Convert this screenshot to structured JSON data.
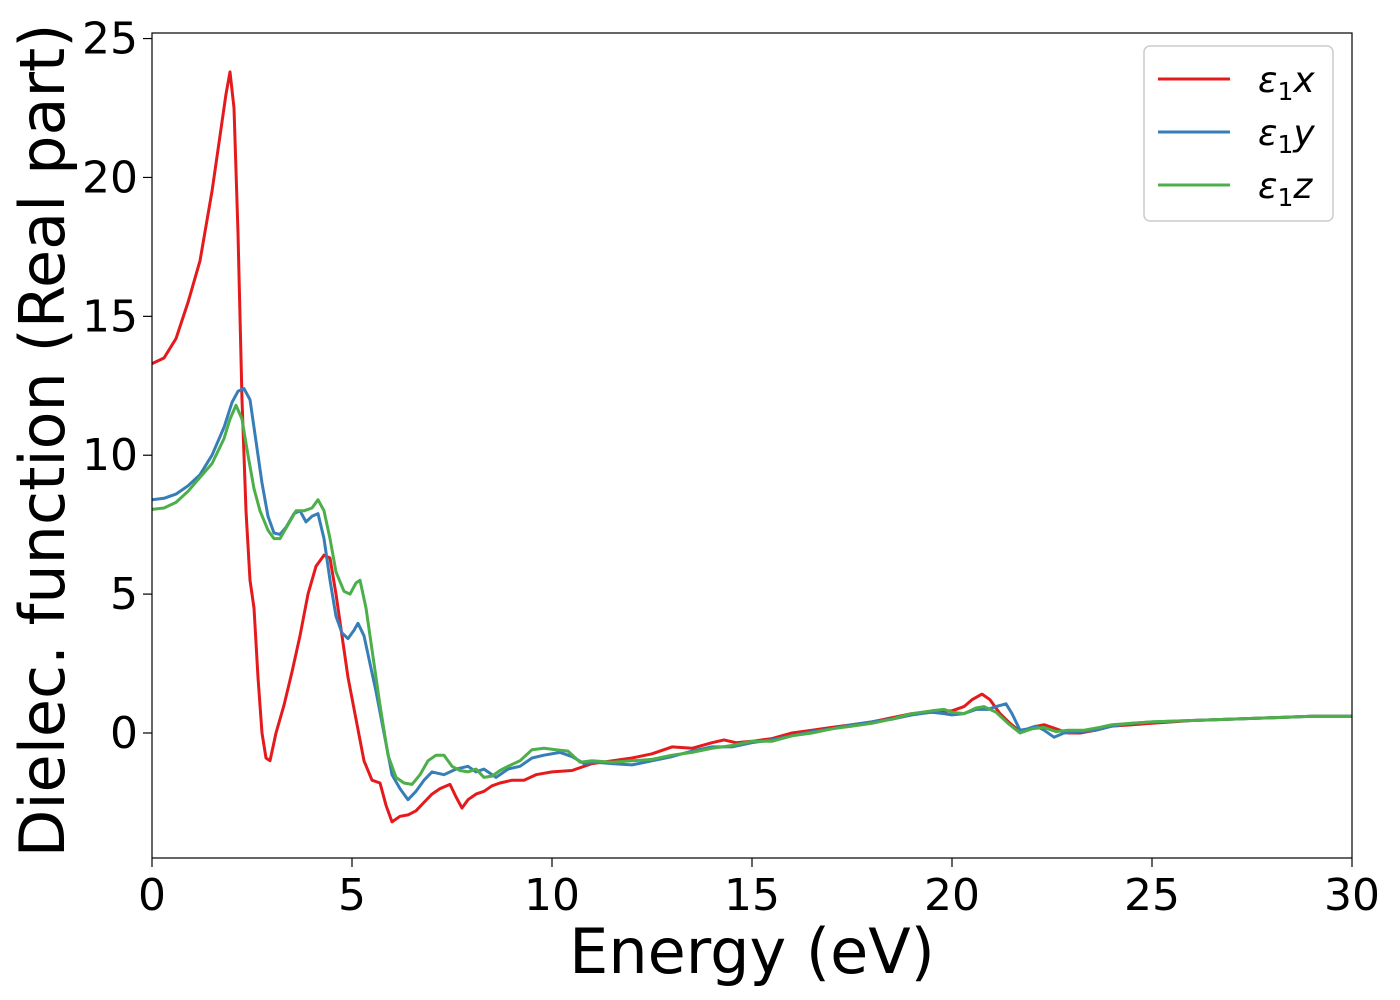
{
  "chart_data": {
    "type": "line",
    "title": "",
    "xlabel": "Energy (eV)",
    "ylabel": "Dielec. function (Real part)",
    "xlim": [
      0,
      30
    ],
    "ylim": [
      -4.5,
      25.2
    ],
    "xticks": [
      0,
      5,
      10,
      15,
      20,
      25,
      30
    ],
    "yticks": [
      0,
      5,
      10,
      15,
      20,
      25
    ],
    "grid": false,
    "legend_position": "top-right",
    "series": [
      {
        "name": "ε1x",
        "color": "#e41a1c",
        "points": [
          [
            0,
            13.3
          ],
          [
            0.3,
            13.5
          ],
          [
            0.6,
            14.2
          ],
          [
            0.9,
            15.5
          ],
          [
            1.2,
            17.0
          ],
          [
            1.5,
            19.5
          ],
          [
            1.7,
            21.5
          ],
          [
            1.85,
            23.0
          ],
          [
            1.95,
            23.8
          ],
          [
            2.05,
            22.5
          ],
          [
            2.15,
            18.0
          ],
          [
            2.25,
            12.0
          ],
          [
            2.35,
            8.0
          ],
          [
            2.45,
            5.5
          ],
          [
            2.55,
            4.5
          ],
          [
            2.65,
            2.0
          ],
          [
            2.75,
            0.0
          ],
          [
            2.85,
            -0.9
          ],
          [
            2.95,
            -1.0
          ],
          [
            3.1,
            0.0
          ],
          [
            3.3,
            1.0
          ],
          [
            3.5,
            2.2
          ],
          [
            3.7,
            3.5
          ],
          [
            3.9,
            5.0
          ],
          [
            4.1,
            6.0
          ],
          [
            4.3,
            6.4
          ],
          [
            4.45,
            6.3
          ],
          [
            4.6,
            5.0
          ],
          [
            4.75,
            3.5
          ],
          [
            4.9,
            2.0
          ],
          [
            5.1,
            0.5
          ],
          [
            5.3,
            -1.0
          ],
          [
            5.5,
            -1.7
          ],
          [
            5.7,
            -1.8
          ],
          [
            5.85,
            -2.6
          ],
          [
            6.0,
            -3.2
          ],
          [
            6.2,
            -3.0
          ],
          [
            6.4,
            -2.95
          ],
          [
            6.6,
            -2.8
          ],
          [
            6.8,
            -2.5
          ],
          [
            7.0,
            -2.2
          ],
          [
            7.2,
            -2.0
          ],
          [
            7.45,
            -1.85
          ],
          [
            7.6,
            -2.3
          ],
          [
            7.75,
            -2.7
          ],
          [
            7.9,
            -2.4
          ],
          [
            8.1,
            -2.2
          ],
          [
            8.3,
            -2.1
          ],
          [
            8.5,
            -1.9
          ],
          [
            8.7,
            -1.8
          ],
          [
            9.0,
            -1.7
          ],
          [
            9.3,
            -1.7
          ],
          [
            9.6,
            -1.5
          ],
          [
            10.0,
            -1.4
          ],
          [
            10.5,
            -1.35
          ],
          [
            11.0,
            -1.1
          ],
          [
            11.5,
            -1.0
          ],
          [
            12.0,
            -0.9
          ],
          [
            12.5,
            -0.75
          ],
          [
            13.0,
            -0.5
          ],
          [
            13.5,
            -0.55
          ],
          [
            14.0,
            -0.35
          ],
          [
            14.3,
            -0.25
          ],
          [
            14.6,
            -0.35
          ],
          [
            15.0,
            -0.3
          ],
          [
            15.5,
            -0.2
          ],
          [
            16.0,
            0.0
          ],
          [
            16.5,
            0.1
          ],
          [
            17.0,
            0.2
          ],
          [
            17.5,
            0.3
          ],
          [
            18.0,
            0.4
          ],
          [
            18.5,
            0.55
          ],
          [
            19.0,
            0.7
          ],
          [
            19.5,
            0.75
          ],
          [
            20.0,
            0.8
          ],
          [
            20.3,
            0.95
          ],
          [
            20.5,
            1.2
          ],
          [
            20.75,
            1.4
          ],
          [
            20.95,
            1.2
          ],
          [
            21.2,
            0.7
          ],
          [
            21.45,
            0.35
          ],
          [
            21.7,
            0.05
          ],
          [
            22.0,
            0.2
          ],
          [
            22.3,
            0.3
          ],
          [
            22.6,
            0.15
          ],
          [
            22.9,
            0.0
          ],
          [
            23.2,
            0.0
          ],
          [
            23.6,
            0.1
          ],
          [
            24.0,
            0.25
          ],
          [
            24.5,
            0.3
          ],
          [
            25.0,
            0.35
          ],
          [
            26.0,
            0.45
          ],
          [
            27.0,
            0.5
          ],
          [
            28.0,
            0.55
          ],
          [
            29.0,
            0.6
          ],
          [
            30.0,
            0.6
          ]
        ]
      },
      {
        "name": "ε1y",
        "color": "#377eb8",
        "points": [
          [
            0,
            8.4
          ],
          [
            0.3,
            8.45
          ],
          [
            0.6,
            8.6
          ],
          [
            0.9,
            8.9
          ],
          [
            1.2,
            9.3
          ],
          [
            1.5,
            10.0
          ],
          [
            1.8,
            11.0
          ],
          [
            2.0,
            11.9
          ],
          [
            2.15,
            12.3
          ],
          [
            2.3,
            12.4
          ],
          [
            2.45,
            12.0
          ],
          [
            2.6,
            10.5
          ],
          [
            2.75,
            9.0
          ],
          [
            2.9,
            7.8
          ],
          [
            3.05,
            7.2
          ],
          [
            3.2,
            7.15
          ],
          [
            3.35,
            7.4
          ],
          [
            3.55,
            7.9
          ],
          [
            3.7,
            8.0
          ],
          [
            3.85,
            7.6
          ],
          [
            4.0,
            7.8
          ],
          [
            4.15,
            7.9
          ],
          [
            4.3,
            7.0
          ],
          [
            4.45,
            5.5
          ],
          [
            4.6,
            4.2
          ],
          [
            4.75,
            3.6
          ],
          [
            4.9,
            3.4
          ],
          [
            5.05,
            3.7
          ],
          [
            5.15,
            3.95
          ],
          [
            5.3,
            3.5
          ],
          [
            5.45,
            2.5
          ],
          [
            5.6,
            1.5
          ],
          [
            5.8,
            0.0
          ],
          [
            6.0,
            -1.5
          ],
          [
            6.2,
            -2.0
          ],
          [
            6.4,
            -2.4
          ],
          [
            6.6,
            -2.1
          ],
          [
            6.8,
            -1.7
          ],
          [
            7.0,
            -1.4
          ],
          [
            7.3,
            -1.5
          ],
          [
            7.6,
            -1.3
          ],
          [
            7.9,
            -1.2
          ],
          [
            8.1,
            -1.4
          ],
          [
            8.3,
            -1.3
          ],
          [
            8.6,
            -1.6
          ],
          [
            8.9,
            -1.3
          ],
          [
            9.2,
            -1.2
          ],
          [
            9.5,
            -0.9
          ],
          [
            9.8,
            -0.8
          ],
          [
            10.2,
            -0.7
          ],
          [
            10.5,
            -0.85
          ],
          [
            10.8,
            -1.1
          ],
          [
            11.1,
            -1.05
          ],
          [
            11.5,
            -1.1
          ],
          [
            12.0,
            -1.15
          ],
          [
            12.5,
            -1.0
          ],
          [
            13.0,
            -0.85
          ],
          [
            13.5,
            -0.65
          ],
          [
            14.0,
            -0.5
          ],
          [
            14.5,
            -0.5
          ],
          [
            15.0,
            -0.35
          ],
          [
            15.5,
            -0.25
          ],
          [
            16.0,
            -0.1
          ],
          [
            16.5,
            0.05
          ],
          [
            17.0,
            0.15
          ],
          [
            17.5,
            0.3
          ],
          [
            18.0,
            0.4
          ],
          [
            18.5,
            0.5
          ],
          [
            19.0,
            0.65
          ],
          [
            19.5,
            0.75
          ],
          [
            19.8,
            0.7
          ],
          [
            20.0,
            0.65
          ],
          [
            20.3,
            0.7
          ],
          [
            20.6,
            0.85
          ],
          [
            20.9,
            0.85
          ],
          [
            21.1,
            0.95
          ],
          [
            21.35,
            1.05
          ],
          [
            21.5,
            0.7
          ],
          [
            21.7,
            0.1
          ],
          [
            21.9,
            0.15
          ],
          [
            22.1,
            0.25
          ],
          [
            22.3,
            0.1
          ],
          [
            22.55,
            -0.15
          ],
          [
            22.8,
            0.0
          ],
          [
            23.2,
            0.05
          ],
          [
            23.6,
            0.1
          ],
          [
            24.0,
            0.25
          ],
          [
            24.5,
            0.35
          ],
          [
            25.0,
            0.4
          ],
          [
            26.0,
            0.45
          ],
          [
            27.0,
            0.5
          ],
          [
            28.0,
            0.55
          ],
          [
            29.0,
            0.6
          ],
          [
            30.0,
            0.6
          ]
        ]
      },
      {
        "name": "ε1z",
        "color": "#4daf4a",
        "points": [
          [
            0,
            8.05
          ],
          [
            0.3,
            8.1
          ],
          [
            0.6,
            8.3
          ],
          [
            0.9,
            8.7
          ],
          [
            1.2,
            9.2
          ],
          [
            1.5,
            9.7
          ],
          [
            1.8,
            10.6
          ],
          [
            1.95,
            11.3
          ],
          [
            2.1,
            11.8
          ],
          [
            2.25,
            11.3
          ],
          [
            2.4,
            10.0
          ],
          [
            2.55,
            8.8
          ],
          [
            2.7,
            8.0
          ],
          [
            2.9,
            7.3
          ],
          [
            3.05,
            7.0
          ],
          [
            3.2,
            7.0
          ],
          [
            3.4,
            7.5
          ],
          [
            3.6,
            8.0
          ],
          [
            3.8,
            8.0
          ],
          [
            4.0,
            8.1
          ],
          [
            4.15,
            8.4
          ],
          [
            4.3,
            8.0
          ],
          [
            4.45,
            7.0
          ],
          [
            4.6,
            5.8
          ],
          [
            4.8,
            5.1
          ],
          [
            4.95,
            5.0
          ],
          [
            5.1,
            5.4
          ],
          [
            5.2,
            5.5
          ],
          [
            5.35,
            4.5
          ],
          [
            5.5,
            3.0
          ],
          [
            5.7,
            1.0
          ],
          [
            5.9,
            -0.8
          ],
          [
            6.1,
            -1.6
          ],
          [
            6.3,
            -1.8
          ],
          [
            6.5,
            -1.85
          ],
          [
            6.7,
            -1.5
          ],
          [
            6.9,
            -1.0
          ],
          [
            7.1,
            -0.8
          ],
          [
            7.3,
            -0.8
          ],
          [
            7.5,
            -1.2
          ],
          [
            7.7,
            -1.35
          ],
          [
            7.9,
            -1.4
          ],
          [
            8.1,
            -1.3
          ],
          [
            8.3,
            -1.6
          ],
          [
            8.5,
            -1.55
          ],
          [
            8.7,
            -1.35
          ],
          [
            8.9,
            -1.2
          ],
          [
            9.2,
            -1.0
          ],
          [
            9.5,
            -0.6
          ],
          [
            9.8,
            -0.55
          ],
          [
            10.1,
            -0.6
          ],
          [
            10.4,
            -0.65
          ],
          [
            10.7,
            -1.05
          ],
          [
            11.0,
            -1.0
          ],
          [
            11.5,
            -1.05
          ],
          [
            12.0,
            -1.0
          ],
          [
            12.5,
            -0.95
          ],
          [
            13.0,
            -0.8
          ],
          [
            13.5,
            -0.7
          ],
          [
            14.0,
            -0.55
          ],
          [
            14.5,
            -0.45
          ],
          [
            15.0,
            -0.3
          ],
          [
            15.5,
            -0.3
          ],
          [
            16.0,
            -0.1
          ],
          [
            16.5,
            0.0
          ],
          [
            17.0,
            0.15
          ],
          [
            17.5,
            0.25
          ],
          [
            18.0,
            0.35
          ],
          [
            18.5,
            0.5
          ],
          [
            19.0,
            0.7
          ],
          [
            19.5,
            0.8
          ],
          [
            19.8,
            0.85
          ],
          [
            20.0,
            0.75
          ],
          [
            20.3,
            0.7
          ],
          [
            20.6,
            0.9
          ],
          [
            20.8,
            0.95
          ],
          [
            21.1,
            0.75
          ],
          [
            21.4,
            0.35
          ],
          [
            21.7,
            0.0
          ],
          [
            22.0,
            0.15
          ],
          [
            22.3,
            0.2
          ],
          [
            22.6,
            0.05
          ],
          [
            22.9,
            0.1
          ],
          [
            23.3,
            0.1
          ],
          [
            23.7,
            0.2
          ],
          [
            24.0,
            0.3
          ],
          [
            24.5,
            0.35
          ],
          [
            25.0,
            0.4
          ],
          [
            26.0,
            0.45
          ],
          [
            27.0,
            0.5
          ],
          [
            28.0,
            0.55
          ],
          [
            29.0,
            0.6
          ],
          [
            30.0,
            0.6
          ]
        ]
      }
    ]
  }
}
